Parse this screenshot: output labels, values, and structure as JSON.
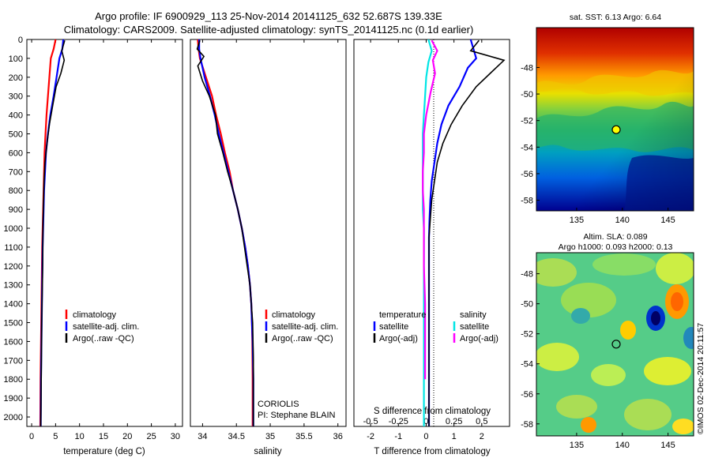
{
  "title_line1": "Argo profile: IF 6900929_113 25-Nov-2014 20141125_632 52.687S 139.33E",
  "title_line2": "Climatology: CARS2009. Satellite-adjusted climatology: synTS_20141125.nc (0.1d earlier)",
  "colors": {
    "climatology": "#ff0000",
    "satellite": "#0000ff",
    "argo": "#000000",
    "satellite_s": "#00e5e5",
    "argo_s": "#ff00ff",
    "marker": "#ffff00"
  },
  "chart_data": [
    {
      "type": "line",
      "id": "temperature",
      "xlabel": "temperature (deg C)",
      "ylabel": "",
      "xlim": [
        -1,
        31.5
      ],
      "ylim": [
        2050,
        0
      ],
      "xticks": [
        "0",
        "5",
        "10",
        "15",
        "20",
        "25",
        "30"
      ],
      "yticks": [
        "0",
        "100",
        "200",
        "300",
        "400",
        "500",
        "600",
        "700",
        "800",
        "900",
        "1000",
        "1100",
        "1200",
        "1300",
        "1400",
        "1500",
        "1600",
        "1700",
        "1800",
        "1900",
        "2000"
      ],
      "legend": [
        "climatology",
        "satellite-adj. clim.",
        "Argo(..raw -QC)"
      ],
      "series": [
        {
          "name": "climatology",
          "color": "#ff0000",
          "x": [
            5.0,
            4.6,
            4.0,
            3.7,
            3.4,
            3.1,
            2.9,
            2.7,
            2.6,
            2.5,
            2.4,
            2.3,
            2.2,
            2.15,
            2.1,
            2.05,
            2.0,
            1.95,
            1.9,
            1.85,
            1.8
          ],
          "y": [
            0,
            50,
            100,
            200,
            300,
            400,
            500,
            600,
            700,
            800,
            900,
            1000,
            1100,
            1200,
            1300,
            1400,
            1500,
            1600,
            1700,
            1800,
            2050
          ]
        },
        {
          "name": "satellite-adj. clim.",
          "color": "#0000ff",
          "x": [
            6.6,
            6.4,
            5.8,
            5.2,
            4.6,
            3.9,
            3.4,
            3.0,
            2.8,
            2.6,
            2.5,
            2.4,
            2.3,
            2.25,
            2.2,
            2.15,
            2.1,
            2.05,
            2.0,
            1.95,
            1.9
          ],
          "y": [
            0,
            50,
            100,
            200,
            300,
            400,
            500,
            600,
            700,
            800,
            900,
            1000,
            1100,
            1200,
            1300,
            1400,
            1500,
            1600,
            1700,
            1800,
            2050
          ]
        },
        {
          "name": "Argo(..raw -QC)",
          "color": "#000000",
          "x": [
            6.9,
            6.3,
            6.8,
            6.1,
            5.1,
            4.4,
            3.7,
            3.2,
            2.8,
            2.6,
            2.5,
            2.4,
            2.35,
            2.3,
            2.2,
            2.1,
            2.05,
            2.0,
            1.95,
            1.9
          ],
          "y": [
            5,
            60,
            110,
            180,
            250,
            350,
            450,
            550,
            650,
            750,
            850,
            950,
            1050,
            1200,
            1350,
            1500,
            1650,
            1800,
            1950,
            2050
          ]
        }
      ]
    },
    {
      "type": "line",
      "id": "salinity",
      "xlabel": "salinity",
      "ylabel": "",
      "xlim": [
        33.82,
        36.12
      ],
      "ylim": [
        2050,
        0
      ],
      "xticks": [
        "34",
        "34.5",
        "35",
        "35.5",
        "36"
      ],
      "legend": [
        "climatology",
        "satellite-adj. clim.",
        "Argo(..raw -QC)"
      ],
      "annotations": [
        "CORIOLIS",
        "PI: Stephane BLAIN"
      ],
      "series": [
        {
          "name": "climatology",
          "color": "#ff0000",
          "x": [
            33.93,
            33.94,
            33.96,
            34.05,
            34.14,
            34.2,
            34.27,
            34.33,
            34.4,
            34.45,
            34.52,
            34.58,
            34.63,
            34.67,
            34.7,
            34.72,
            34.73,
            34.735,
            34.74,
            34.74
          ],
          "y": [
            0,
            50,
            100,
            200,
            300,
            400,
            500,
            600,
            700,
            800,
            900,
            1000,
            1100,
            1200,
            1300,
            1400,
            1500,
            1600,
            1800,
            2050
          ]
        },
        {
          "name": "satellite-adj. clim.",
          "color": "#0000ff",
          "x": [
            33.95,
            33.95,
            33.97,
            34.03,
            34.11,
            34.18,
            34.24,
            34.31,
            34.38,
            34.45,
            34.52,
            34.58,
            34.63,
            34.67,
            34.7,
            34.72,
            34.73,
            34.74,
            34.75,
            34.75
          ],
          "y": [
            0,
            50,
            100,
            200,
            300,
            400,
            500,
            600,
            700,
            800,
            900,
            1000,
            1100,
            1200,
            1300,
            1400,
            1500,
            1600,
            1800,
            2050
          ]
        },
        {
          "name": "Argo(..raw -QC)",
          "color": "#000000",
          "x": [
            33.96,
            33.92,
            34.02,
            33.93,
            34.0,
            34.1,
            34.19,
            34.22,
            34.3,
            34.37,
            34.45,
            34.52,
            34.58,
            34.62,
            34.66,
            34.7,
            34.72,
            34.74,
            34.75,
            34.75
          ],
          "y": [
            5,
            50,
            90,
            140,
            220,
            300,
            400,
            500,
            600,
            700,
            800,
            900,
            1000,
            1100,
            1200,
            1300,
            1400,
            1500,
            1700,
            2050
          ]
        }
      ]
    },
    {
      "type": "line",
      "id": "difference",
      "xlabel": "T difference from climatology",
      "xlabel2": "S difference from climatology",
      "xlim": [
        -2.6,
        3.0
      ],
      "ylim": [
        2050,
        0
      ],
      "xticks": [
        "-2",
        "-1",
        "0",
        "1",
        "2"
      ],
      "xticks2": [
        "-0.5",
        "-0.25",
        "0",
        "0.25",
        "0.5"
      ],
      "legend_groups": [
        {
          "title": "temperature",
          "entries": [
            "satellite",
            "Argo(-adj)"
          ]
        },
        {
          "title": "salinity",
          "entries": [
            "satellite",
            "Argo(-adj)"
          ]
        }
      ],
      "series": [
        {
          "name": "temperature satellite",
          "color": "#0000ff",
          "x": [
            1.6,
            1.7,
            1.8,
            1.5,
            1.2,
            0.8,
            0.55,
            0.4,
            0.3,
            0.2,
            0.15,
            0.12,
            0.1,
            0.1,
            0.1,
            0.1,
            0.1,
            0.1,
            0.1
          ],
          "y": [
            0,
            50,
            100,
            150,
            250,
            350,
            450,
            550,
            650,
            750,
            850,
            950,
            1050,
            1200,
            1400,
            1600,
            1800,
            2000,
            2050
          ]
        },
        {
          "name": "temperature Argo(-adj)",
          "color": "#000000",
          "x": [
            1.9,
            1.6,
            2.8,
            2.3,
            1.8,
            1.3,
            0.9,
            0.6,
            0.4,
            0.3,
            0.2,
            0.15,
            0.1,
            0.1,
            0.1,
            0.1,
            0.1,
            0.1
          ],
          "y": [
            5,
            60,
            110,
            180,
            250,
            350,
            450,
            550,
            650,
            750,
            850,
            950,
            1050,
            1200,
            1400,
            1600,
            1800,
            2050
          ]
        },
        {
          "name": "salinity satellite",
          "color": "#00e5e5",
          "x": [
            0.02,
            0.05,
            0.02,
            0.0,
            -0.01,
            -0.02,
            -0.03,
            -0.03,
            -0.03,
            -0.03,
            -0.03,
            -0.02,
            -0.02,
            -0.02,
            -0.02,
            -0.02,
            -0.02,
            -0.02
          ],
          "y": [
            0,
            60,
            120,
            200,
            300,
            400,
            500,
            600,
            700,
            800,
            900,
            1000,
            1100,
            1200,
            1400,
            1600,
            1800,
            2050
          ]
        },
        {
          "name": "salinity Argo(-adj)",
          "color": "#ff00ff",
          "x": [
            0.05,
            0.1,
            0.06,
            0.08,
            0.04,
            0.0,
            -0.02,
            -0.02,
            -0.03,
            -0.03,
            -0.02,
            -0.02,
            -0.02,
            -0.01,
            -0.01,
            -0.01
          ],
          "y": [
            5,
            60,
            110,
            180,
            280,
            400,
            500,
            600,
            700,
            800,
            900,
            1000,
            1200,
            1400,
            1600,
            1800
          ]
        }
      ]
    },
    {
      "type": "heatmap",
      "id": "sst_map",
      "title": "sat. SST: 6.13 Argo: 6.64",
      "xlim": [
        130.6,
        147.8
      ],
      "ylim": [
        -58.8,
        -45.0
      ],
      "xticks": [
        "135",
        "140",
        "145"
      ],
      "yticks": [
        "-48",
        "-50",
        "-52",
        "-54",
        "-56",
        "-58"
      ],
      "marker": {
        "lon": 139.33,
        "lat": -52.687
      }
    },
    {
      "type": "heatmap",
      "id": "sla_map",
      "title": "Altim. SLA: 0.089",
      "subtitle": "Argo h1000: 0.093 h2000: 0.13",
      "xlim": [
        130.6,
        147.8
      ],
      "ylim": [
        -58.8,
        -46.6
      ],
      "xticks": [
        "135",
        "140",
        "145"
      ],
      "yticks": [
        "-48",
        "-50",
        "-52",
        "-54",
        "-56",
        "-58"
      ],
      "marker": {
        "lon": 139.33,
        "lat": -52.687
      },
      "side_label": "©IMOS 02-Dec-2014 20:11:57"
    }
  ]
}
